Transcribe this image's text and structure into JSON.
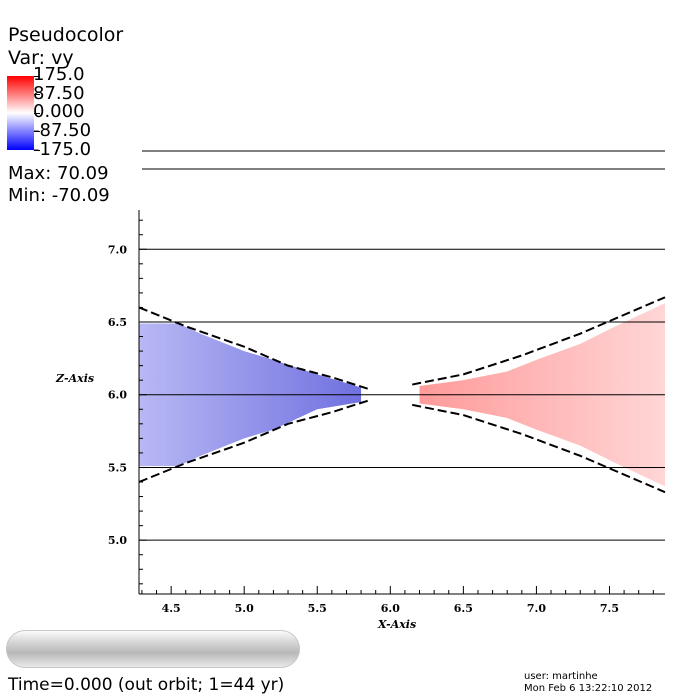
{
  "legend": {
    "title": "Pseudocolor",
    "var": "Var: vy",
    "ticks": [
      "175.0",
      "87.50",
      "0.000",
      "-87.50",
      "-175.0"
    ],
    "max": "Max:  70.09",
    "min": "Min: -70.09",
    "colors": {
      "high": "#ff0000",
      "mid": "#ffffff",
      "low": "#0000ff"
    }
  },
  "footer": {
    "time": "Time=0.000 (out orbit; 1=44 yr)",
    "user": "user: martinhe",
    "date": "Mon Feb  6 13:22:10 2012"
  },
  "chart_data": {
    "type": "heatmap",
    "xlabel": "X-Axis",
    "ylabel": "Z-Axis",
    "xlim": [
      4.28,
      7.88
    ],
    "ylim": [
      4.63,
      7.27
    ],
    "xticks": [
      "4.5",
      "5.0",
      "5.5",
      "6.0",
      "6.5",
      "7.0",
      "7.5"
    ],
    "yticks": [
      "5.0",
      "5.5",
      "6.0",
      "6.5",
      "7.0"
    ],
    "xtick_values": [
      4.5,
      5.0,
      5.5,
      6.0,
      6.5,
      7.0,
      7.5
    ],
    "ytick_values": [
      5.0,
      5.5,
      6.0,
      6.5,
      7.0
    ],
    "horizontal_lines": [
      5.0,
      5.5,
      6.0,
      6.5,
      7.0
    ],
    "grid": false,
    "regions": [
      {
        "side": "left",
        "color_left": "#b8b8f4",
        "color_right": "#7070e0",
        "polygon": [
          [
            4.28,
            6.49
          ],
          [
            4.55,
            6.49
          ],
          [
            4.7,
            6.42
          ],
          [
            5.0,
            6.3
          ],
          [
            5.2,
            6.24
          ],
          [
            5.5,
            6.14
          ],
          [
            5.8,
            6.05
          ],
          [
            5.8,
            5.95
          ],
          [
            5.5,
            5.9
          ],
          [
            5.2,
            5.76
          ],
          [
            5.0,
            5.7
          ],
          [
            4.7,
            5.58
          ],
          [
            4.55,
            5.51
          ],
          [
            4.28,
            5.51
          ]
        ]
      },
      {
        "side": "right",
        "color_left": "#ff9a9a",
        "color_right": "#ffd6d6",
        "polygon": [
          [
            6.2,
            6.06
          ],
          [
            6.5,
            6.1
          ],
          [
            6.8,
            6.16
          ],
          [
            7.0,
            6.24
          ],
          [
            7.3,
            6.35
          ],
          [
            7.5,
            6.45
          ],
          [
            7.88,
            6.63
          ],
          [
            7.88,
            5.37
          ],
          [
            7.5,
            5.55
          ],
          [
            7.3,
            5.65
          ],
          [
            7.0,
            5.76
          ],
          [
            6.8,
            5.84
          ],
          [
            6.5,
            5.9
          ],
          [
            6.2,
            5.94
          ]
        ]
      }
    ],
    "contours": [
      [
        [
          4.28,
          6.6
        ],
        [
          4.6,
          6.47
        ],
        [
          5.0,
          6.33
        ],
        [
          5.3,
          6.2
        ],
        [
          5.6,
          6.12
        ],
        [
          5.85,
          6.04
        ]
      ],
      [
        [
          4.28,
          5.4
        ],
        [
          4.6,
          5.53
        ],
        [
          5.0,
          5.67
        ],
        [
          5.3,
          5.8
        ],
        [
          5.6,
          5.88
        ],
        [
          5.85,
          5.96
        ]
      ],
      [
        [
          6.15,
          6.07
        ],
        [
          6.5,
          6.14
        ],
        [
          6.9,
          6.27
        ],
        [
          7.3,
          6.42
        ],
        [
          7.88,
          6.67
        ]
      ],
      [
        [
          6.15,
          5.93
        ],
        [
          6.5,
          5.86
        ],
        [
          6.9,
          5.73
        ],
        [
          7.3,
          5.58
        ],
        [
          7.88,
          5.33
        ]
      ]
    ]
  }
}
